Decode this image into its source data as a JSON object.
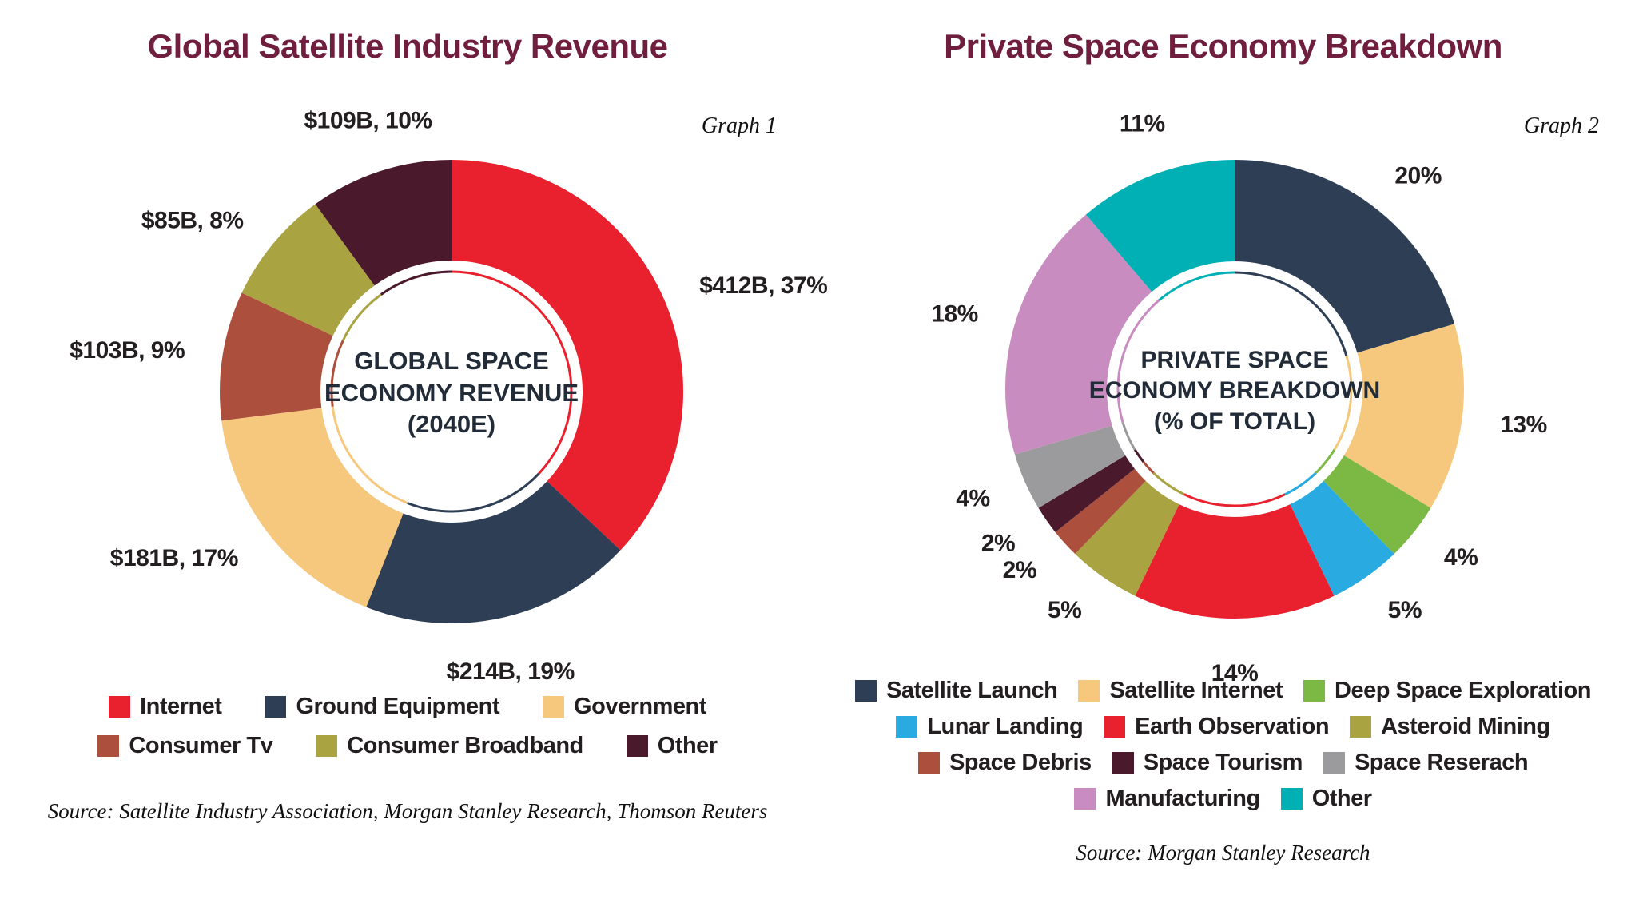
{
  "charts": [
    {
      "title": "Global Satellite Industry Revenue",
      "graph_label": "Graph 1",
      "center_lines": [
        "GLOBAL SPACE",
        "ECONOMY REVENUE",
        "(2040E)"
      ],
      "source": "Source: Satellite Industry Association, Morgan Stanley Research, Thomson Reuters",
      "legend_rows": [
        [
          "Internet",
          "Ground Equipment",
          "Government"
        ],
        [
          "Consumer Tv",
          "Consumer Broadband",
          "Other"
        ]
      ]
    },
    {
      "title": "Private Space Economy Breakdown",
      "graph_label": "Graph 2",
      "center_lines": [
        "PRIVATE SPACE",
        "ECONOMY BREAKDOWN",
        "(% OF TOTAL)"
      ],
      "source": "Source: Morgan Stanley Research",
      "legend_rows": [
        [
          "Satellite Launch",
          "Satellite Internet",
          "Deep Space Exploration"
        ],
        [
          "Lunar Landing",
          "Earth Observation",
          "Asteroid Mining"
        ],
        [
          "Space Debris",
          "Space Tourism",
          "Space Reserach"
        ],
        [
          "Manufacturing",
          "Other"
        ]
      ]
    }
  ],
  "chart_data": [
    {
      "type": "pie",
      "subtype": "donut",
      "title": "Global Satellite Industry Revenue",
      "center_label": "GLOBAL SPACE ECONOMY REVENUE (2040E)",
      "unit": "$B",
      "legend_position": "bottom",
      "start_angle_deg": 0,
      "direction": "clockwise",
      "segments": [
        {
          "label": "Internet",
          "value": 412,
          "percent": 37,
          "display": "$412B, 37%",
          "color": "#e9202d"
        },
        {
          "label": "Ground Equipment",
          "value": 214,
          "percent": 19,
          "display": "$214B, 19%",
          "color": "#2e3e55"
        },
        {
          "label": "Government",
          "value": 181,
          "percent": 17,
          "display": "$181B, 17%",
          "color": "#f6c87e"
        },
        {
          "label": "Consumer Tv",
          "value": 103,
          "percent": 9,
          "display": "$103B, 9%",
          "color": "#ad4f3d"
        },
        {
          "label": "Consumer Broadband",
          "value": 85,
          "percent": 8,
          "display": "$85B, 8%",
          "color": "#a9a341"
        },
        {
          "label": "Other",
          "value": 109,
          "percent": 10,
          "display": "$109B, 10%",
          "color": "#4a1a2c"
        }
      ]
    },
    {
      "type": "pie",
      "subtype": "donut",
      "title": "Private Space Economy Breakdown",
      "center_label": "PRIVATE SPACE ECONOMY BREAKDOWN (% OF TOTAL)",
      "unit": "% of total",
      "legend_position": "bottom",
      "start_angle_deg": 0,
      "direction": "clockwise",
      "segments": [
        {
          "label": "Satellite Launch",
          "percent": 20,
          "display": "20%",
          "color": "#2e3e55"
        },
        {
          "label": "Satellite Internet",
          "percent": 13,
          "display": "13%",
          "color": "#f6c87e"
        },
        {
          "label": "Deep Space Exploration",
          "percent": 4,
          "display": "4%",
          "color": "#7cb944"
        },
        {
          "label": "Lunar Landing",
          "percent": 5,
          "display": "5%",
          "color": "#29abe2"
        },
        {
          "label": "Earth Observation",
          "percent": 14,
          "display": "14%",
          "color": "#e9202d"
        },
        {
          "label": "Asteroid Mining",
          "percent": 5,
          "display": "5%",
          "color": "#a9a341"
        },
        {
          "label": "Space Debris",
          "percent": 2,
          "display": "2%",
          "color": "#ad4f3d"
        },
        {
          "label": "Space Tourism",
          "percent": 2,
          "display": "2%",
          "color": "#4a1a2c"
        },
        {
          "label": "Space Reserach",
          "percent": 4,
          "display": "4%",
          "color": "#9b9b9d"
        },
        {
          "label": "Manufacturing",
          "percent": 18,
          "display": "18%",
          "color": "#c88cc0"
        },
        {
          "label": "Other",
          "percent": 11,
          "display": "11%",
          "color": "#00b0b4"
        }
      ]
    }
  ],
  "theme": {
    "background": "#ffffff",
    "title_color": "#6f1e3d",
    "text_color": "#231f20"
  }
}
